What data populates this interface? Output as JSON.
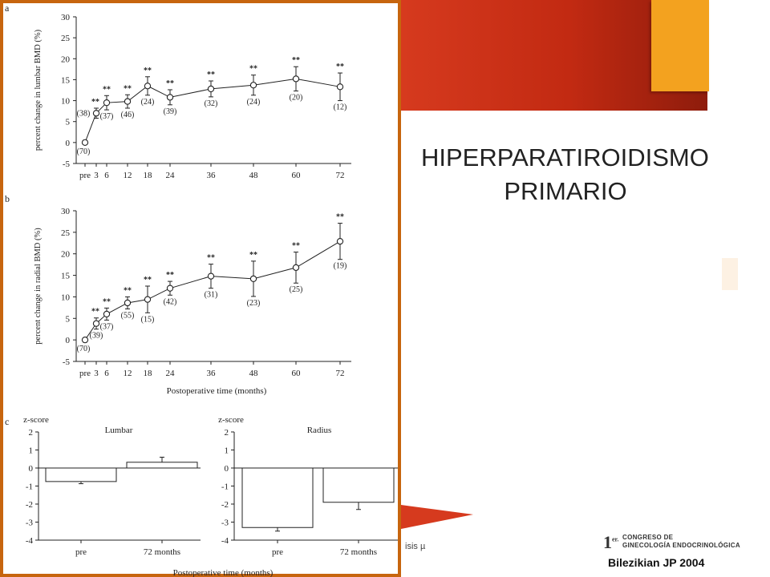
{
  "slide": {
    "title_line1": "HIPERPARATIROIDISMO",
    "title_line2": "PRIMARIO",
    "citation": "Bilezikian JP 2004",
    "fragment_text": "isis µ",
    "logo": {
      "number": "1",
      "superscript": "er.",
      "line1": "CONGRESO DE",
      "line2": "GINECOLOGÍA ENDOCRINOLÓGICA"
    },
    "colors": {
      "banner": "#c22a12",
      "accent": "#f3a21f",
      "frame": "#c7650e"
    }
  },
  "chart_data": [
    {
      "panel": "a",
      "type": "line",
      "ylabel": "percent change in lumbar BMD (%)",
      "xlabel": "",
      "ylim": [
        -5,
        30
      ],
      "yticks": [
        -5,
        0,
        5,
        10,
        15,
        20,
        25,
        30
      ],
      "x": [
        0,
        3,
        6,
        12,
        18,
        24,
        36,
        48,
        60,
        72
      ],
      "xtick_labels": [
        "pre",
        "3",
        "6",
        "12",
        "18",
        "24",
        "36",
        "48",
        "60",
        "72"
      ],
      "values": [
        0,
        7,
        9.5,
        9.8,
        13.5,
        10.8,
        12.8,
        13.7,
        15.2,
        13.3
      ],
      "errors": [
        0,
        1.2,
        1.7,
        1.6,
        2.2,
        1.8,
        1.9,
        2.4,
        2.9,
        3.3
      ],
      "n_labels": [
        "(70)",
        "(38)",
        "(37)",
        "(46)",
        "(24)",
        "(39)",
        "(32)",
        "(24)",
        "(20)",
        "(12)"
      ],
      "significance": [
        "",
        "**",
        "**",
        "**",
        "**",
        "**",
        "**",
        "**",
        "**",
        "**"
      ]
    },
    {
      "panel": "b",
      "type": "line",
      "ylabel": "percent change in radial BMD (%)",
      "xlabel": "Postoperative time (months)",
      "ylim": [
        -5,
        30
      ],
      "yticks": [
        -5,
        0,
        5,
        10,
        15,
        20,
        25,
        30
      ],
      "x": [
        0,
        3,
        6,
        12,
        18,
        24,
        36,
        48,
        60,
        72
      ],
      "xtick_labels": [
        "pre",
        "3",
        "6",
        "12",
        "18",
        "24",
        "36",
        "48",
        "60",
        "72"
      ],
      "values": [
        0,
        3.8,
        6.0,
        8.6,
        9.4,
        12.0,
        14.8,
        14.2,
        16.8,
        22.9
      ],
      "errors": [
        0,
        1.3,
        1.4,
        1.4,
        3.1,
        1.6,
        2.8,
        4.1,
        3.6,
        4.2
      ],
      "n_labels": [
        "(70)",
        "(39)",
        "(37)",
        "(55)",
        "(15)",
        "(42)",
        "(31)",
        "(23)",
        "(25)",
        "(19)"
      ],
      "significance": [
        "",
        "**",
        "**",
        "**",
        "**",
        "**",
        "**",
        "**",
        "**",
        "**"
      ]
    },
    {
      "panel": "c",
      "type": "bar",
      "title": "Lumbar",
      "ylabel": "z-score",
      "ylim": [
        -4,
        2
      ],
      "yticks": [
        -4,
        -3,
        -2,
        -1,
        0,
        1,
        2
      ],
      "categories": [
        "pre",
        "72 months"
      ],
      "values": [
        -0.75,
        0.32
      ],
      "errors": [
        0.12,
        0.28
      ]
    },
    {
      "panel": "c",
      "type": "bar",
      "title": "Radius",
      "ylabel": "z-score",
      "ylim": [
        -4,
        2
      ],
      "yticks": [
        -4,
        -3,
        -2,
        -1,
        0,
        1,
        2
      ],
      "categories": [
        "pre",
        "72 months"
      ],
      "values": [
        -3.3,
        -1.9
      ],
      "errors": [
        0.2,
        0.4
      ]
    }
  ],
  "panel_c_xlabel": "Postoperative time (months)"
}
